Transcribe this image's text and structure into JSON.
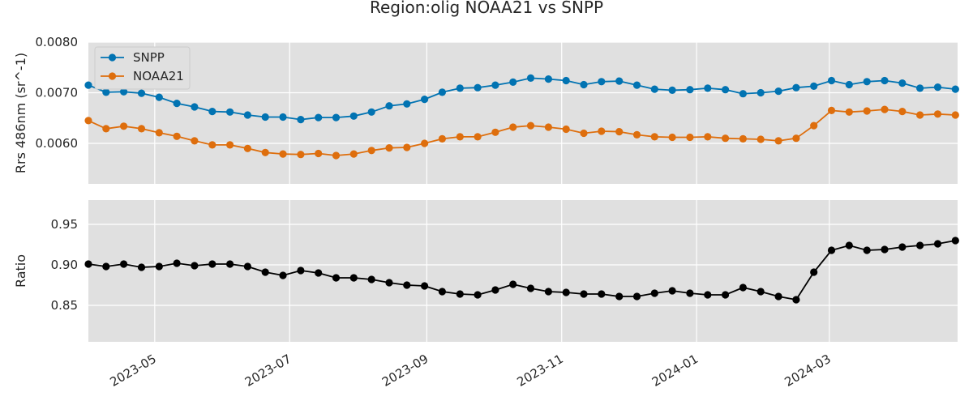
{
  "chart_data": {
    "type": "line",
    "title": "Region:olig NOAA21 vs SNPP",
    "x_axis": {
      "type": "date",
      "range": [
        "2023-04-01",
        "2024-04-28"
      ],
      "ticks": [
        {
          "date": "2023-05-01",
          "label": "2023-05"
        },
        {
          "date": "2023-07-01",
          "label": "2023-07"
        },
        {
          "date": "2023-09-01",
          "label": "2023-09"
        },
        {
          "date": "2023-11-01",
          "label": "2023-11"
        },
        {
          "date": "2024-01-01",
          "label": "2024-01"
        },
        {
          "date": "2024-03-01",
          "label": "2024-03"
        }
      ]
    },
    "dates": [
      "2023-04-01",
      "2023-04-09",
      "2023-04-17",
      "2023-04-25",
      "2023-05-03",
      "2023-05-11",
      "2023-05-19",
      "2023-05-27",
      "2023-06-04",
      "2023-06-12",
      "2023-06-20",
      "2023-06-28",
      "2023-07-06",
      "2023-07-14",
      "2023-07-22",
      "2023-07-30",
      "2023-08-07",
      "2023-08-15",
      "2023-08-23",
      "2023-08-31",
      "2023-09-08",
      "2023-09-16",
      "2023-09-24",
      "2023-10-02",
      "2023-10-10",
      "2023-10-18",
      "2023-10-26",
      "2023-11-03",
      "2023-11-11",
      "2023-11-19",
      "2023-11-27",
      "2023-12-05",
      "2023-12-13",
      "2023-12-21",
      "2023-12-29",
      "2024-01-06",
      "2024-01-14",
      "2024-01-22",
      "2024-01-30",
      "2024-02-07",
      "2024-02-15",
      "2024-02-23",
      "2024-03-02",
      "2024-03-10",
      "2024-03-18",
      "2024-03-26",
      "2024-04-03",
      "2024-04-11",
      "2024-04-19",
      "2024-04-27"
    ],
    "panels": [
      {
        "ylabel": "Rrs 486nm (sr^-1)",
        "ylim": [
          0.0052,
          0.008
        ],
        "yticks": [
          {
            "value": 0.006,
            "label": "0.0060"
          },
          {
            "value": 0.007,
            "label": "0.0070"
          },
          {
            "value": 0.008,
            "label": "0.0080"
          }
        ],
        "grid": true,
        "legend": "top-left",
        "series": [
          {
            "name": "SNPP",
            "color": "#0173b2",
            "values": [
              0.00715,
              0.00701,
              0.00702,
              0.00699,
              0.00691,
              0.00679,
              0.00672,
              0.00663,
              0.00662,
              0.00656,
              0.00652,
              0.00652,
              0.00647,
              0.00651,
              0.00651,
              0.00654,
              0.00662,
              0.00674,
              0.00678,
              0.00687,
              0.00701,
              0.00709,
              0.0071,
              0.00715,
              0.00721,
              0.00729,
              0.00727,
              0.00724,
              0.00716,
              0.00722,
              0.00723,
              0.00715,
              0.00707,
              0.00705,
              0.00706,
              0.00709,
              0.00706,
              0.00698,
              0.007,
              0.00703,
              0.0071,
              0.00713,
              0.00724,
              0.00716,
              0.00722,
              0.00724,
              0.00719,
              0.00709,
              0.00711,
              0.00707
            ]
          },
          {
            "name": "NOAA21",
            "color": "#de6e0d",
            "values": [
              0.00645,
              0.00629,
              0.00634,
              0.00629,
              0.00621,
              0.00614,
              0.00605,
              0.00597,
              0.00597,
              0.0059,
              0.00582,
              0.00579,
              0.00578,
              0.0058,
              0.00576,
              0.00579,
              0.00586,
              0.00591,
              0.00592,
              0.006,
              0.00609,
              0.00613,
              0.00613,
              0.00622,
              0.00632,
              0.00635,
              0.00632,
              0.00628,
              0.0062,
              0.00624,
              0.00623,
              0.00617,
              0.00613,
              0.00612,
              0.00612,
              0.00613,
              0.0061,
              0.00609,
              0.00608,
              0.00605,
              0.0061,
              0.00635,
              0.00665,
              0.00662,
              0.00664,
              0.00667,
              0.00663,
              0.00656,
              0.00658,
              0.00656
            ]
          }
        ]
      },
      {
        "ylabel": "Ratio",
        "ylim": [
          0.805,
          0.98
        ],
        "yticks": [
          {
            "value": 0.85,
            "label": "0.85"
          },
          {
            "value": 0.9,
            "label": "0.90"
          },
          {
            "value": 0.95,
            "label": "0.95"
          }
        ],
        "grid": true,
        "series": [
          {
            "name": "",
            "color": "#000000",
            "values": [
              0.901,
              0.898,
              0.901,
              0.897,
              0.898,
              0.902,
              0.899,
              0.901,
              0.901,
              0.898,
              0.891,
              0.887,
              0.893,
              0.89,
              0.884,
              0.884,
              0.882,
              0.878,
              0.875,
              0.874,
              0.867,
              0.864,
              0.863,
              0.869,
              0.876,
              0.871,
              0.867,
              0.866,
              0.864,
              0.864,
              0.861,
              0.861,
              0.865,
              0.868,
              0.865,
              0.863,
              0.863,
              0.872,
              0.867,
              0.861,
              0.857,
              0.891,
              0.918,
              0.924,
              0.918,
              0.919,
              0.922,
              0.924,
              0.926,
              0.93
            ]
          }
        ]
      }
    ]
  }
}
